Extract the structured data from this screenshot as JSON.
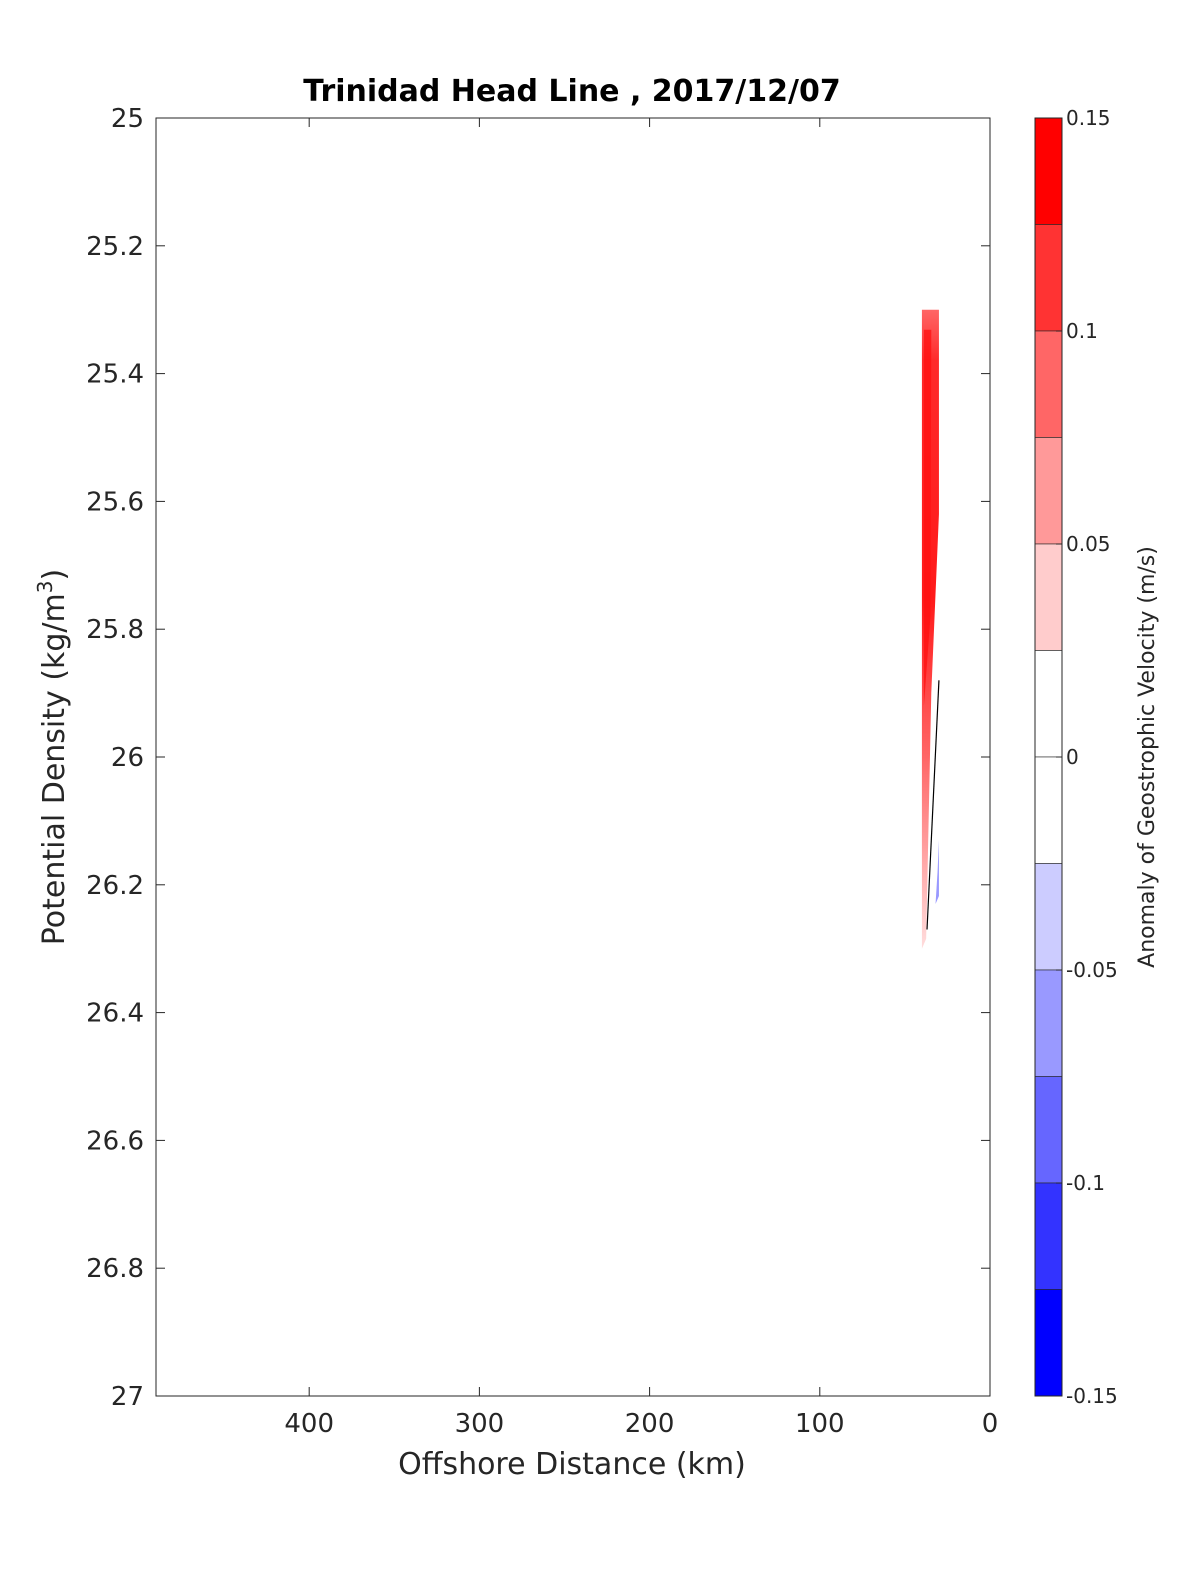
{
  "chart_data": {
    "type": "contour",
    "title": "Trinidad Head Line , 2017/12/07",
    "xlabel": "Offshore Distance (km)",
    "ylabel_main": "Potential Density (kg/m",
    "ylabel_sup": "3",
    "ylabel_close": ")",
    "xlim": [
      490,
      0
    ],
    "ylim": [
      25,
      27
    ],
    "y_reversed": true,
    "x_reversed": true,
    "xticks": [
      400,
      300,
      200,
      100,
      0
    ],
    "xtick_labels": [
      "400",
      "300",
      "200",
      "100",
      "0"
    ],
    "yticks": [
      25,
      25.2,
      25.4,
      25.6,
      25.8,
      26,
      26.2,
      26.4,
      26.6,
      26.8,
      27
    ],
    "ytick_labels": [
      "25",
      "25.2",
      "25.4",
      "25.6",
      "25.8",
      "26",
      "26.2",
      "26.4",
      "26.6",
      "26.8",
      "27"
    ],
    "colorbar": {
      "label": "Anomaly of Geostrophic Velocity (m/s)",
      "limits": [
        -0.15,
        0.15
      ],
      "ticks": [
        0.15,
        0.1,
        0.05,
        0,
        -0.05,
        -0.1,
        -0.15
      ],
      "tick_labels": [
        "0.15",
        "0.1",
        "0.05",
        "0",
        "-0.05",
        "-0.1",
        "-0.15"
      ],
      "levels": [
        {
          "from": 0.125,
          "to": 0.15,
          "color": "#ff0000"
        },
        {
          "from": 0.1,
          "to": 0.125,
          "color": "#ff3333"
        },
        {
          "from": 0.075,
          "to": 0.1,
          "color": "#ff6666"
        },
        {
          "from": 0.05,
          "to": 0.075,
          "color": "#ff9999"
        },
        {
          "from": 0.025,
          "to": 0.05,
          "color": "#ffcccc"
        },
        {
          "from": 0,
          "to": 0.025,
          "color": "#ffffff"
        },
        {
          "from": -0.025,
          "to": 0,
          "color": "#ffffff"
        },
        {
          "from": -0.05,
          "to": -0.025,
          "color": "#ccccff"
        },
        {
          "from": -0.075,
          "to": -0.05,
          "color": "#9999ff"
        },
        {
          "from": -0.1,
          "to": -0.075,
          "color": "#6666ff"
        },
        {
          "from": -0.125,
          "to": -0.1,
          "color": "#3333ff"
        },
        {
          "from": -0.15,
          "to": -0.125,
          "color": "#0000ff"
        }
      ]
    },
    "data_regions": [
      {
        "name": "positive-anomaly-band",
        "x_range": [
          40,
          30
        ],
        "sigma_range": [
          25.3,
          26.3
        ],
        "max_value": 0.15,
        "color": "#ff0000"
      },
      {
        "name": "negative-anomaly-patch",
        "x_range": [
          32,
          30
        ],
        "sigma_range": [
          26.13,
          26.23
        ],
        "max_value": -0.05,
        "color": "#9999ff"
      }
    ],
    "zero_contour": [
      [
        30,
        25.88
      ],
      [
        37,
        26.27
      ]
    ]
  }
}
